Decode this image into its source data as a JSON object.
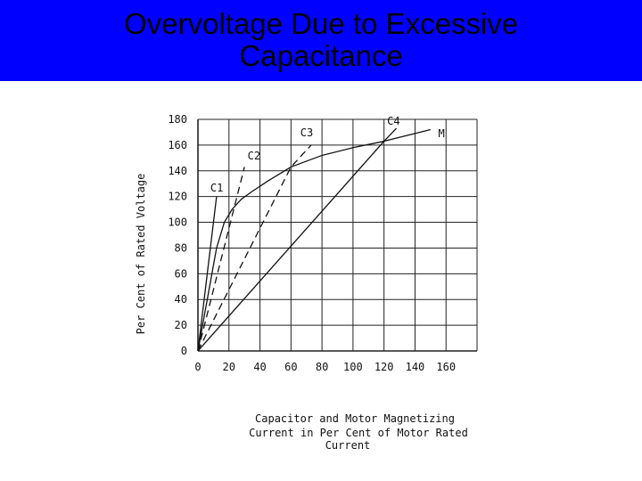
{
  "slide": {
    "title_line1": "Overvoltage Due to Excessive",
    "title_line2": "Capacitance",
    "title_bg": "#0000ff"
  },
  "chart_data": {
    "type": "line",
    "ylabel": "Per Cent of Rated Voltage",
    "xlabel_lines": [
      "Capacitor and Motor Magnetizing",
      "Current in Per Cent of Motor Rated",
      "Current"
    ],
    "xlim": [
      0,
      180
    ],
    "ylim": [
      0,
      180
    ],
    "x_ticks": [
      "0",
      "20",
      "40",
      "60",
      "80",
      "100",
      "120",
      "140",
      "160"
    ],
    "x_tick_values": [
      0,
      20,
      40,
      60,
      80,
      100,
      120,
      140,
      160
    ],
    "y_ticks": [
      "0",
      "20",
      "40",
      "60",
      "80",
      "100",
      "120",
      "140",
      "160",
      "180"
    ],
    "y_tick_values": [
      0,
      20,
      40,
      60,
      80,
      100,
      120,
      140,
      160,
      180
    ],
    "grid": true,
    "series": [
      {
        "name": "M",
        "style": "solid",
        "x": [
          0,
          3,
          6,
          9,
          12,
          17,
          22,
          28,
          35,
          45,
          60,
          80,
          100,
          120,
          150
        ],
        "y": [
          0,
          20,
          40,
          60,
          80,
          100,
          110,
          118,
          124,
          132,
          143,
          152,
          158,
          163,
          172
        ]
      },
      {
        "name": "C1",
        "style": "solid",
        "x": [
          0,
          12
        ],
        "y": [
          0,
          120
        ]
      },
      {
        "name": "C2",
        "style": "dashed",
        "x": [
          0,
          30
        ],
        "y": [
          0,
          143
        ]
      },
      {
        "name": "C3",
        "style": "dashed",
        "x": [
          0,
          60,
          73
        ],
        "y": [
          0,
          143,
          160
        ]
      },
      {
        "name": "C4",
        "style": "solid",
        "x": [
          0,
          120,
          128
        ],
        "y": [
          0,
          163,
          173
        ]
      }
    ],
    "label_positions": {
      "C1": [
        8,
        124
      ],
      "C2": [
        32,
        149
      ],
      "C3": [
        66,
        167
      ],
      "C4": [
        122,
        176
      ],
      "M": [
        155,
        166
      ]
    }
  }
}
